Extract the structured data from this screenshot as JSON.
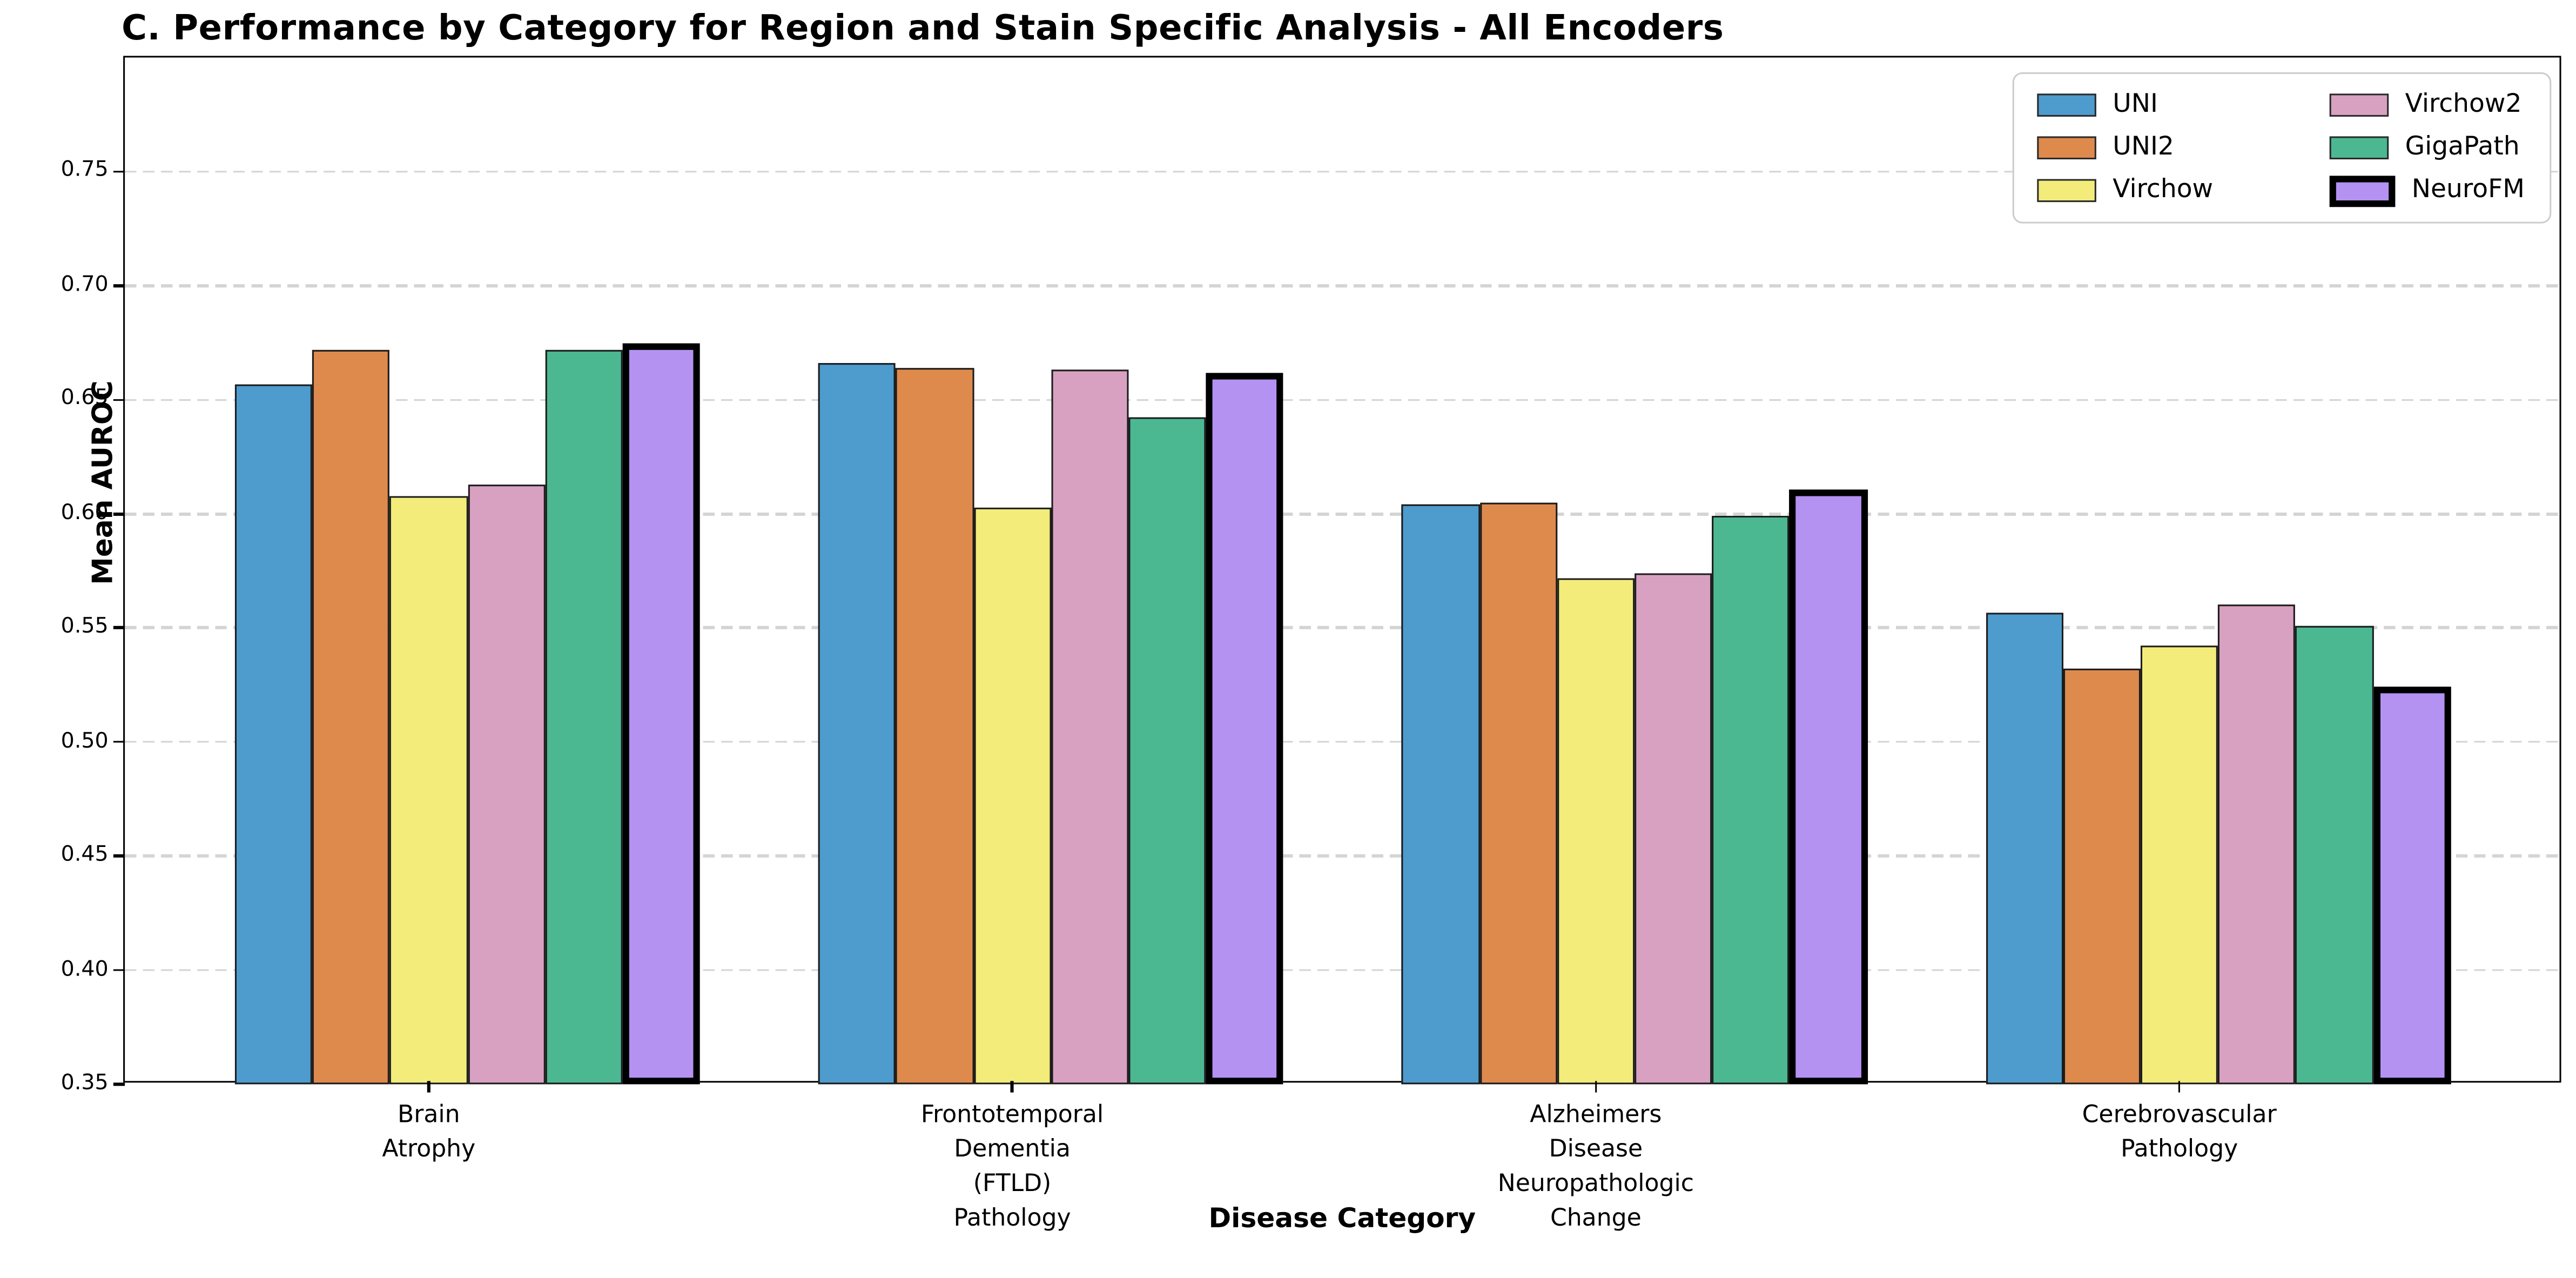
{
  "figure": {
    "title": "C. Performance by Category for Region and Stain Specific Analysis - All Encoders",
    "background": "#ffffff"
  },
  "chart_data": {
    "type": "bar",
    "title": "C. Performance by Category for Region and Stain Specific Analysis - All Encoders",
    "xlabel": "Disease Category",
    "ylabel": "Mean AUROC",
    "ylim": [
      0.35,
      0.8
    ],
    "yticks": [
      0.35,
      0.4,
      0.45,
      0.5,
      0.55,
      0.6,
      0.65,
      0.7,
      0.75
    ],
    "grid": "horizontal dashed light-gray",
    "legend_position": "upper right, 2 columns",
    "categories": [
      "Brain\nAtrophy",
      "Frontotemporal\nDementia\n(FTLD)\nPathology",
      "Alzheimers\nDisease\nNeuropathologic\nChange",
      "Cerebrovascular\nPathology"
    ],
    "series": [
      {
        "name": "UNI",
        "color": "#4E9BCD",
        "values": [
          0.657,
          0.666,
          0.604,
          0.557
        ]
      },
      {
        "name": "UNI2",
        "color": "#DE8A4D",
        "values": [
          0.672,
          0.664,
          0.605,
          0.532
        ]
      },
      {
        "name": "Virchow",
        "color": "#F3EC7B",
        "values": [
          0.608,
          0.603,
          0.572,
          0.542
        ]
      },
      {
        "name": "Virchow2",
        "color": "#D8A1C1",
        "values": [
          0.613,
          0.663,
          0.574,
          0.56
        ]
      },
      {
        "name": "GigaPath",
        "color": "#4BB892",
        "values": [
          0.672,
          0.642,
          0.599,
          0.551
        ]
      },
      {
        "name": "NeuroFM",
        "color": "#B392F2",
        "values": [
          0.675,
          0.662,
          0.611,
          0.524
        ]
      }
    ],
    "highlight_series": "NeuroFM",
    "bar_edge_color": "#1c1c1c",
    "highlight_edge_color": "#000000"
  }
}
